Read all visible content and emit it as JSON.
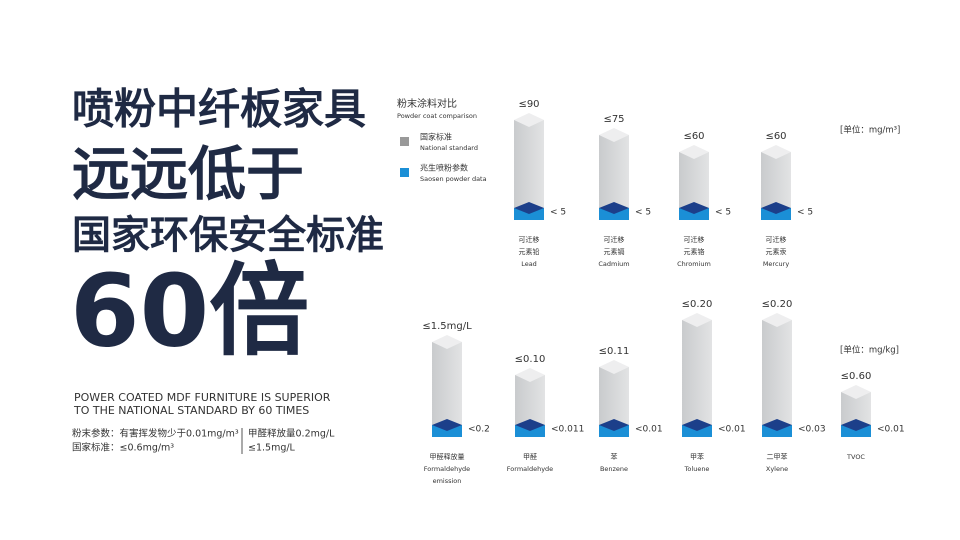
{
  "headline": {
    "line1": "喷粉中纤板家具",
    "line2": "远远低于",
    "line3": "国家环保安全标准",
    "line4": "60倍",
    "en1": "POWER COATED MDF FURNITURE IS SUPERIOR",
    "en2": "TO THE NATIONAL STANDARD BY 60 TIMES"
  },
  "notes": {
    "left1": "粉末参数：有害挥发物少于0.01mg/m³",
    "left2": "国家标准：≤0.6mg/m³",
    "right1": "甲醛释放量0.2mg/L",
    "right2": "≤1.5mg/L"
  },
  "legend": {
    "title": "粉末涂料对比",
    "title_en": "Powder coat comparison",
    "national": "国家标准",
    "national_en": "National standard",
    "saosen": "兆生喷粉参数",
    "saosen_en": "Saosen powder data"
  },
  "groups": [
    {
      "unit": "[单位：mg/m³]",
      "items": [
        {
          "limit": "≤90",
          "value": "< 5",
          "name_cn": [
            "可迁移",
            "元素铅"
          ],
          "name_en": [
            "Lead"
          ]
        },
        {
          "limit": "≤75",
          "value": "< 5",
          "name_cn": [
            "可迁移",
            "元素镉"
          ],
          "name_en": [
            "Cadmium"
          ]
        },
        {
          "limit": "≤60",
          "value": "< 5",
          "name_cn": [
            "可迁移",
            "元素铬"
          ],
          "name_en": [
            "Chromium"
          ]
        },
        {
          "limit": "≤60",
          "value": "< 5",
          "name_cn": [
            "可迁移",
            "元素汞"
          ],
          "name_en": [
            "Mercury"
          ]
        }
      ]
    },
    {
      "unit": "[单位：mg/kg]",
      "items": [
        {
          "limit": "≤1.5mg/L",
          "value": "<0.2",
          "name_cn": [
            "甲醛释放量"
          ],
          "name_en": [
            "Formaldehyde",
            "emission"
          ]
        },
        {
          "limit": "≤0.10",
          "value": "<0.011",
          "name_cn": [
            "甲醛"
          ],
          "name_en": [
            "Formaldehyde"
          ]
        },
        {
          "limit": "≤0.11",
          "value": "<0.01",
          "name_cn": [
            "苯"
          ],
          "name_en": [
            "Benzene"
          ]
        },
        {
          "limit": "≤0.20",
          "value": "<0.01",
          "name_cn": [
            "甲苯"
          ],
          "name_en": [
            "Toluene"
          ]
        },
        {
          "limit": "≤0.20",
          "value": "<0.03",
          "name_cn": [
            "二甲苯"
          ],
          "name_en": [
            "Xylene"
          ]
        },
        {
          "limit": "≤0.60",
          "value": "<0.01",
          "name_cn": [],
          "name_en": [
            "TVOC"
          ]
        }
      ]
    }
  ]
}
